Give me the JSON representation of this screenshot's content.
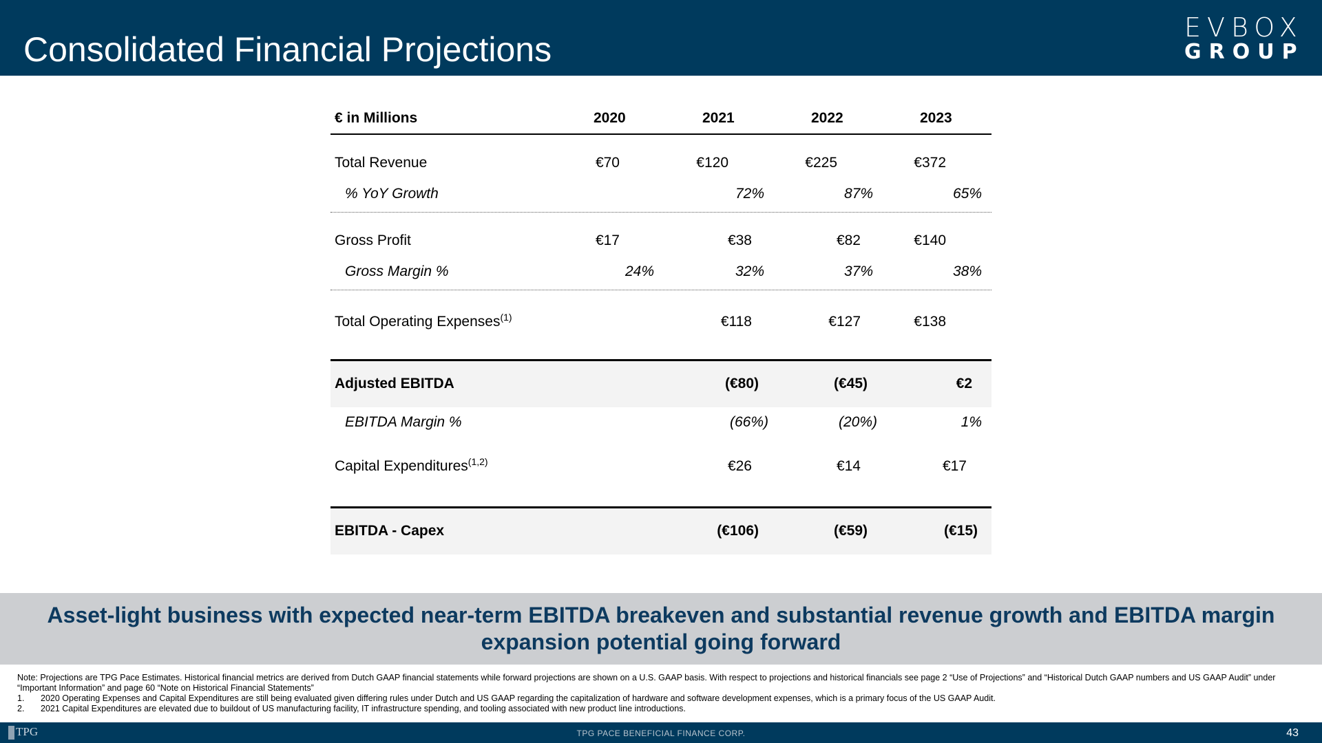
{
  "header": {
    "title": "Consolidated Financial Projections",
    "logo_line1": "EVBOX",
    "logo_line2": "GROUP"
  },
  "table": {
    "unit_label": "€ in Millions",
    "years": [
      "2020",
      "2021",
      "2022",
      "2023"
    ],
    "rows": {
      "total_revenue": {
        "label": "Total Revenue",
        "values": [
          "€70",
          "€120",
          "€225",
          "€372"
        ]
      },
      "yoy_growth": {
        "label": "% YoY Growth",
        "values": [
          "",
          "72%",
          "87%",
          "65%"
        ]
      },
      "gross_profit": {
        "label": "Gross Profit",
        "values": [
          "€17",
          "€38",
          "€82",
          "€140"
        ]
      },
      "gross_margin": {
        "label": "Gross Margin %",
        "values": [
          "24%",
          "32%",
          "37%",
          "38%"
        ]
      },
      "total_opex": {
        "label": "Total Operating Expenses",
        "sup": "(1)",
        "values": [
          "",
          "€118",
          "€127",
          "€138"
        ]
      },
      "adjusted_ebitda": {
        "label": "Adjusted EBITDA",
        "values": [
          "",
          "(€80)",
          "(€45)",
          "€2"
        ]
      },
      "ebitda_margin": {
        "label": "EBITDA Margin %",
        "values": [
          "",
          "(66%)",
          "(20%)",
          "1%"
        ]
      },
      "capex": {
        "label": "Capital Expenditures",
        "sup": "(1,2)",
        "values": [
          "",
          "€26",
          "€14",
          "€17"
        ]
      },
      "ebitda_capex": {
        "label": "EBITDA - Capex",
        "values": [
          "",
          "(€106)",
          "(€59)",
          "(€15)"
        ]
      }
    }
  },
  "banner": {
    "text": "Asset-light business with expected near-term EBITDA breakeven and substantial revenue growth and EBITDA margin expansion potential going forward"
  },
  "notes": {
    "note": "Note: Projections are TPG Pace Estimates. Historical financial metrics are derived from Dutch GAAP financial statements while forward projections are shown on a U.S. GAAP basis. With respect to projections and historical financials see page 2 “Use of Projections” and “Historical Dutch GAAP numbers and US GAAP Audit” under “Important Information” and page 60 “Note on Historical Financial Statements”",
    "items": [
      {
        "num": "1.",
        "text": "2020 Operating Expenses and Capital Expenditures are still being evaluated given differing rules under Dutch and US GAAP regarding the capitalization of hardware and software development expenses, which is a primary focus of the US GAAP Audit."
      },
      {
        "num": "2.",
        "text": "2021 Capital Expenditures are elevated due to buildout of US manufacturing facility, IT infrastructure spending, and tooling associated with new product line introductions."
      }
    ]
  },
  "footer": {
    "logo_text": "TPG",
    "company": "TPG PACE BENEFICIAL FINANCE CORP.",
    "page_number": "43"
  }
}
